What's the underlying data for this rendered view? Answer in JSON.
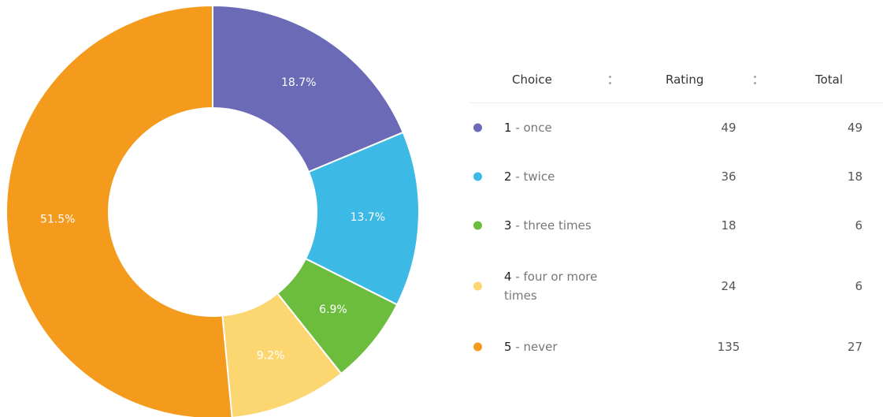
{
  "chart_data": {
    "type": "pie",
    "values": [
      18.7,
      13.7,
      6.9,
      9.2,
      51.5
    ],
    "value_labels": [
      "18.7%",
      "13.7%",
      "6.9%",
      "9.2%",
      "51.5%"
    ],
    "colors": [
      "#6a6ab7",
      "#3db9e6",
      "#6cbc3d",
      "#fcd670",
      "#f49b1e"
    ]
  },
  "table": {
    "columns": [
      "Choice",
      "Rating",
      "Total"
    ],
    "rows": [
      {
        "number": "1",
        "label": "- once",
        "rating": 49,
        "total": 49
      },
      {
        "number": "2",
        "label": "- twice",
        "rating": 36,
        "total": 18
      },
      {
        "number": "3",
        "label": "- three times",
        "rating": 18,
        "total": 6
      },
      {
        "number": "4",
        "label": "- four or more times",
        "rating": 24,
        "total": 6
      },
      {
        "number": "5",
        "label": "- never",
        "rating": 135,
        "total": 27
      }
    ]
  }
}
